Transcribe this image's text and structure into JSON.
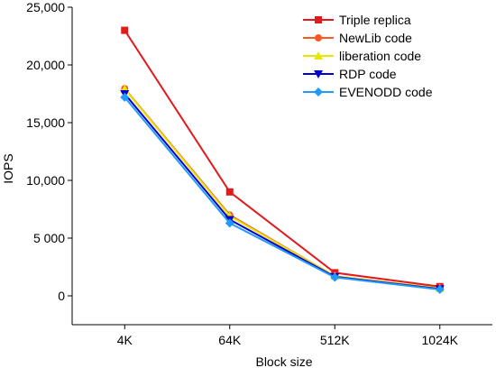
{
  "chart_data": {
    "type": "line",
    "title": "",
    "xlabel": "Block size",
    "ylabel": "IOPS",
    "categories": [
      "4K",
      "64K",
      "512K",
      "1024K"
    ],
    "ylim": [
      -2500,
      25000
    ],
    "y_ticks": [
      0,
      5000,
      10000,
      15000,
      20000,
      25000
    ],
    "y_tick_labels": [
      "0",
      "5 000",
      "10,000",
      "15,000",
      "20,000",
      "25,000"
    ],
    "grid": false,
    "legend_position": "top-right",
    "series": [
      {
        "name": "Triple replica",
        "color": "#e31a1c",
        "marker": "square",
        "values": [
          23000,
          9000,
          2000,
          800
        ]
      },
      {
        "name": "NewLib code",
        "color": "#ff5722",
        "marker": "circle",
        "values": [
          17950,
          7000,
          1700,
          650
        ]
      },
      {
        "name": "liberation code",
        "color": "#e6e600",
        "marker": "triangle-up",
        "values": [
          17900,
          6900,
          1700,
          650
        ]
      },
      {
        "name": "RDP code",
        "color": "#0000cc",
        "marker": "triangle-down",
        "values": [
          17500,
          6600,
          1650,
          600
        ]
      },
      {
        "name": "EVENODD code",
        "color": "#2299ff",
        "marker": "diamond",
        "values": [
          17200,
          6300,
          1600,
          550
        ]
      }
    ]
  }
}
